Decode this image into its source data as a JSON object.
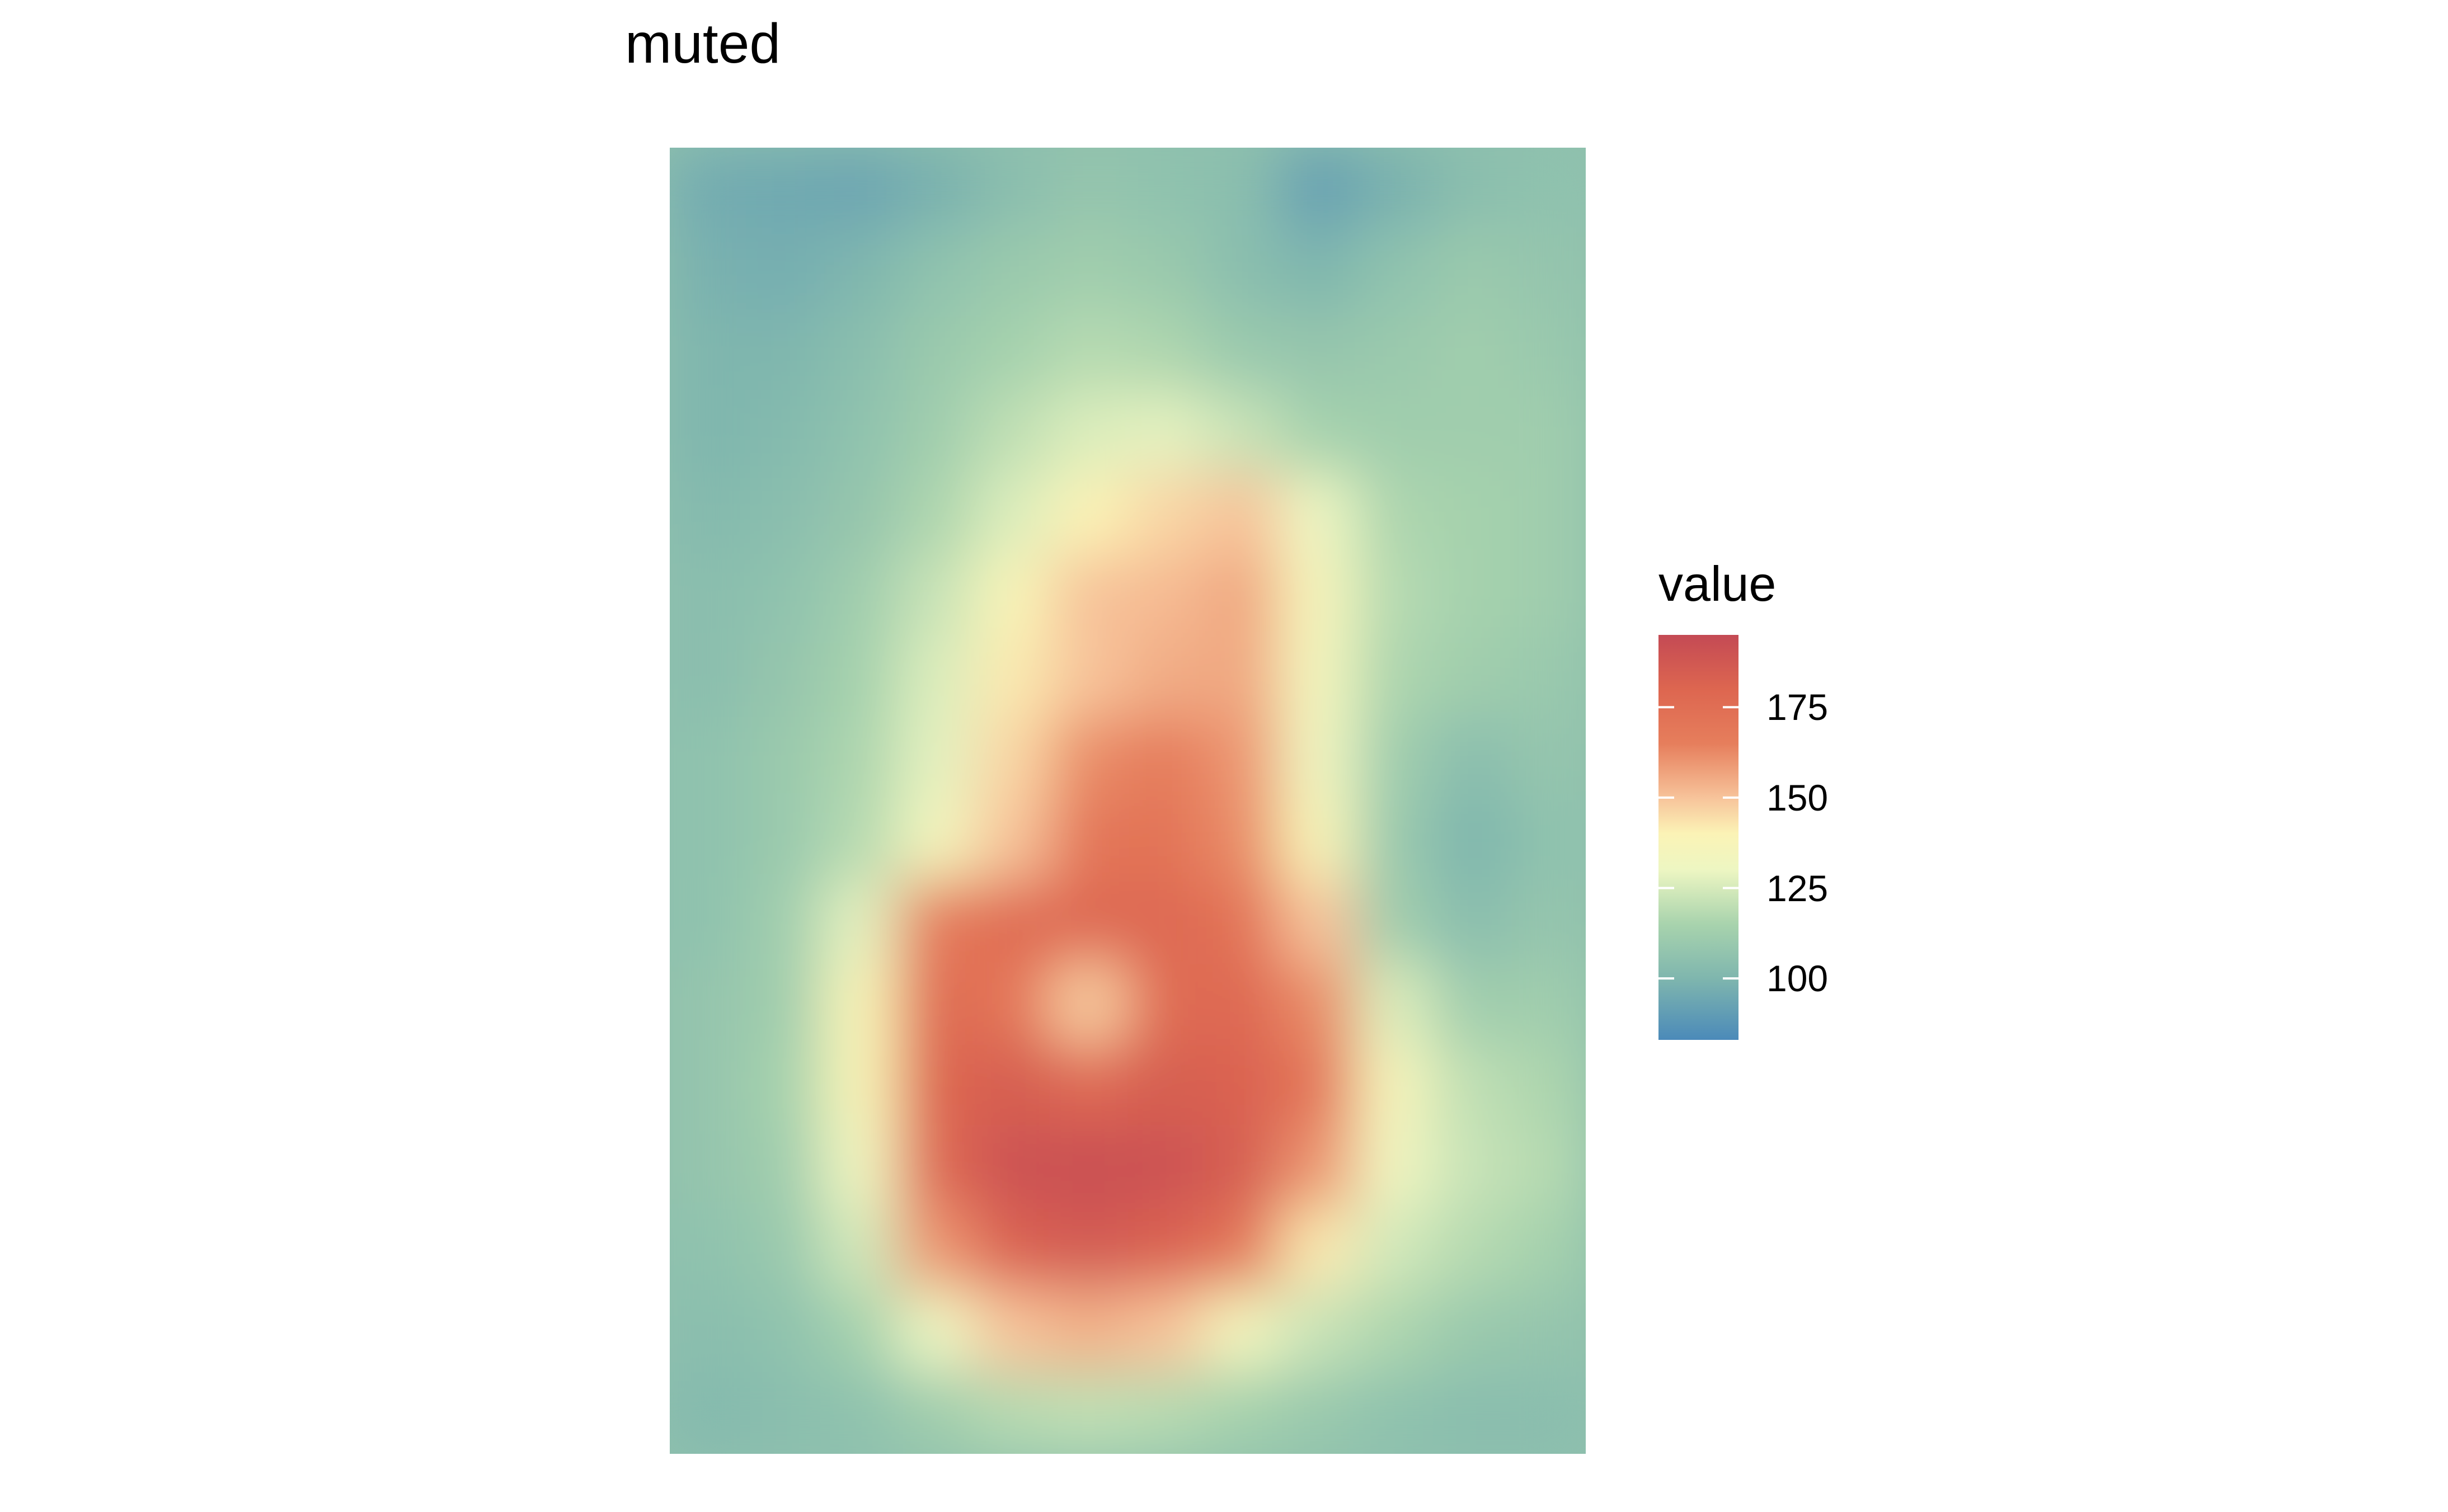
{
  "chart_data": {
    "type": "heatmap",
    "title": "muted",
    "xlabel": "",
    "ylabel": "",
    "grid": false,
    "legend": {
      "title": "value",
      "position": "right",
      "ticks": [
        100,
        125,
        150,
        175
      ],
      "tick_labels": [
        "100",
        "125",
        "150",
        "175"
      ],
      "range": [
        83,
        195
      ]
    },
    "colormap": [
      {
        "value": 83,
        "color": "#4b8ab9"
      },
      {
        "value": 100,
        "color": "#7fb6ae"
      },
      {
        "value": 115,
        "color": "#a8d3ad"
      },
      {
        "value": 130,
        "color": "#edf6c2"
      },
      {
        "value": 140,
        "color": "#fbf3b6"
      },
      {
        "value": 150,
        "color": "#f7c39a"
      },
      {
        "value": 165,
        "color": "#e67e5c"
      },
      {
        "value": 180,
        "color": "#dd6650"
      },
      {
        "value": 195,
        "color": "#c44a54"
      }
    ],
    "grid_cols": 12,
    "grid_rows": 16,
    "values": [
      [
        96,
        95,
        94,
        98,
        104,
        108,
        106,
        104,
        92,
        98,
        104,
        106
      ],
      [
        98,
        97,
        100,
        106,
        110,
        112,
        110,
        104,
        100,
        106,
        110,
        108
      ],
      [
        100,
        100,
        104,
        110,
        114,
        118,
        116,
        110,
        108,
        110,
        112,
        110
      ],
      [
        100,
        102,
        106,
        112,
        120,
        126,
        128,
        122,
        114,
        112,
        112,
        112
      ],
      [
        102,
        104,
        108,
        116,
        126,
        140,
        146,
        150,
        130,
        116,
        114,
        112
      ],
      [
        104,
        106,
        112,
        122,
        138,
        150,
        152,
        156,
        136,
        118,
        114,
        112
      ],
      [
        104,
        108,
        114,
        126,
        142,
        150,
        155,
        156,
        134,
        116,
        112,
        110
      ],
      [
        106,
        110,
        116,
        128,
        146,
        162,
        166,
        160,
        132,
        112,
        104,
        108
      ],
      [
        106,
        110,
        118,
        134,
        150,
        170,
        172,
        162,
        138,
        110,
        100,
        106
      ],
      [
        106,
        112,
        128,
        166,
        176,
        178,
        178,
        172,
        150,
        112,
        104,
        108
      ],
      [
        108,
        112,
        138,
        176,
        170,
        148,
        176,
        178,
        162,
        126,
        112,
        112
      ],
      [
        108,
        114,
        138,
        180,
        184,
        178,
        184,
        182,
        170,
        136,
        120,
        116
      ],
      [
        108,
        112,
        132,
        178,
        190,
        192,
        190,
        184,
        160,
        132,
        122,
        118
      ],
      [
        106,
        110,
        124,
        160,
        182,
        186,
        182,
        170,
        142,
        124,
        118,
        114
      ],
      [
        104,
        106,
        114,
        130,
        150,
        154,
        150,
        134,
        122,
        116,
        110,
        108
      ],
      [
        102,
        104,
        106,
        112,
        118,
        120,
        118,
        114,
        110,
        106,
        104,
        104
      ]
    ]
  }
}
